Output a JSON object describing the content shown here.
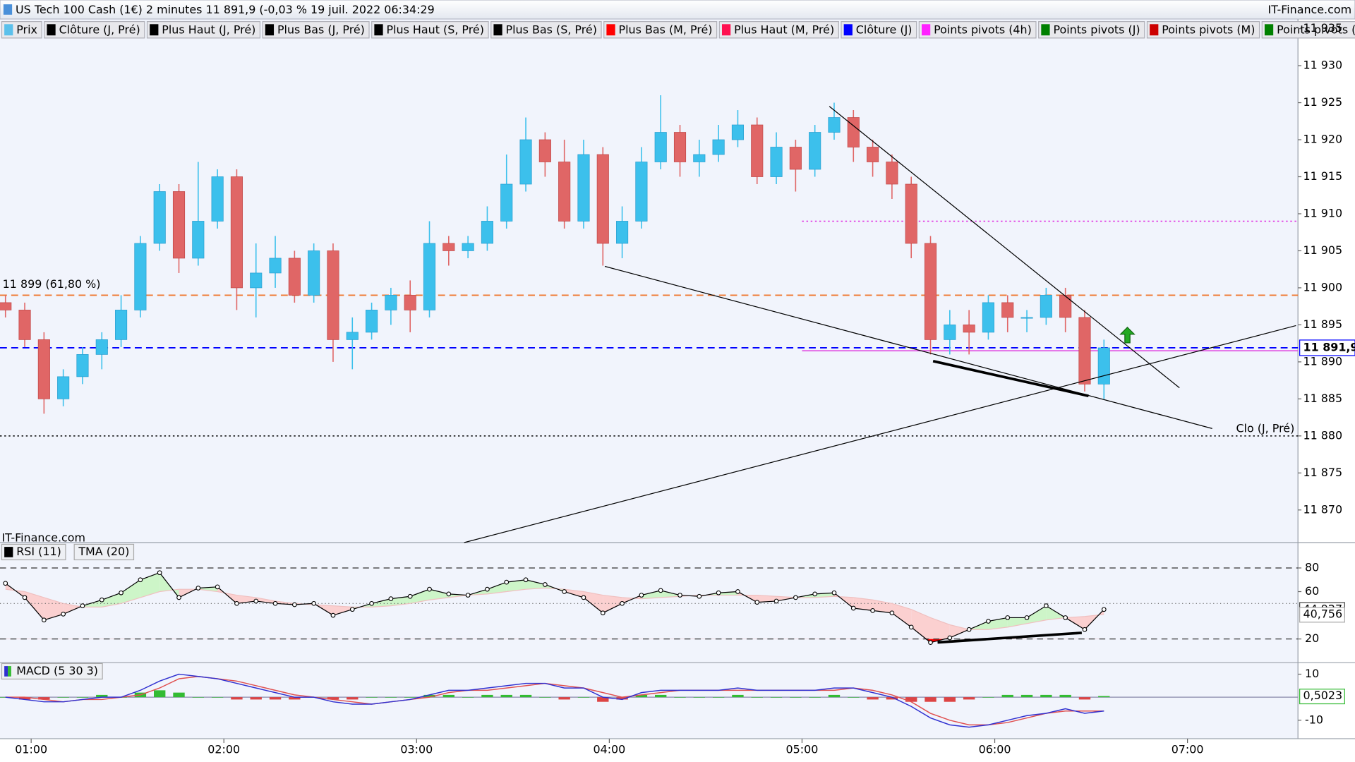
{
  "header": {
    "title": "US Tech 100 Cash (1€) 2 minutes 11 891,9 (-0,03 % 19 juil. 2022 06:34:29",
    "source": "IT-Finance.com"
  },
  "legend": [
    {
      "name": "Prix",
      "color": "#5bc0eb"
    },
    {
      "name": "Clôture (J, Pré)",
      "color": "#000000"
    },
    {
      "name": "Plus Haut (J, Pré)",
      "color": "#000000"
    },
    {
      "name": "Plus Bas (J, Pré)",
      "color": "#000000"
    },
    {
      "name": "Plus Haut (S, Pré)",
      "color": "#000000"
    },
    {
      "name": "Plus Bas (S, Pré)",
      "color": "#000000"
    },
    {
      "name": "Plus Bas (M, Pré)",
      "color": "#ff0000"
    },
    {
      "name": "Plus Haut (M, Pré)",
      "color": "#ff1050"
    },
    {
      "name": "Clôture (J)",
      "color": "#0000ff"
    },
    {
      "name": "Points pivots (4h)",
      "color": "#ff20ff"
    },
    {
      "name": "Points pivots (J)",
      "color": "#008000"
    },
    {
      "name": "Points pivots (M)",
      "color": "#cc0000"
    },
    {
      "name": "Points pivots (",
      "color": "#008000"
    }
  ],
  "chart_data": [
    {
      "type": "candlestick",
      "watermark": "IT-Finance.com",
      "up_color": "#3cc0ec",
      "down_color": "#e06666",
      "x": [
        52,
        58,
        64,
        70,
        76,
        82,
        88,
        94,
        100,
        106,
        112,
        118,
        124,
        130,
        136,
        142,
        148,
        154,
        160,
        166,
        172,
        178,
        184,
        190,
        196,
        202,
        208,
        214,
        220,
        226,
        232,
        238,
        244,
        250,
        256,
        262,
        268,
        274,
        280,
        286,
        292,
        298,
        304,
        310,
        316,
        322,
        328,
        334,
        340,
        346,
        352,
        358,
        364,
        370,
        376,
        382,
        388,
        394
      ],
      "open": [
        11898,
        11897,
        11893,
        11885,
        11888,
        11891,
        11893,
        11897,
        11906,
        11913,
        11904,
        11909,
        11915,
        11900,
        11902,
        11904,
        11899,
        11905,
        11893,
        11894,
        11897,
        11899,
        11897,
        11906,
        11905,
        11906,
        11909,
        11914,
        11920,
        11917,
        11909,
        11918,
        11906,
        11909,
        11917,
        11921,
        11917,
        11918,
        11920,
        11922,
        11915,
        11919,
        11916,
        11921,
        11923,
        11919,
        11917,
        11914,
        11906,
        11893,
        11895,
        11894,
        11898,
        11896,
        11896,
        11899,
        11896,
        11887
      ],
      "high": [
        11899,
        11898,
        11894,
        11889,
        11892,
        11894,
        11899,
        11907,
        11914,
        11914,
        11917,
        11916,
        11916,
        11906,
        11907,
        11905,
        11906,
        11906,
        11896,
        11898,
        11900,
        11901,
        11909,
        11907,
        11907,
        11911,
        11918,
        11923,
        11921,
        11920,
        11920,
        11919,
        11911,
        11919,
        11926,
        11922,
        11920,
        11922,
        11924,
        11923,
        11921,
        11920,
        11922,
        11925,
        11924,
        11920,
        11918,
        11915,
        11907,
        11897,
        11897,
        11899,
        11899,
        11897,
        11900,
        11900,
        11897,
        11893
      ],
      "low": [
        11896,
        11892,
        11883,
        11884,
        11887,
        11889,
        11892,
        11896,
        11905,
        11902,
        11903,
        11908,
        11897,
        11896,
        11900,
        11898,
        11898,
        11890,
        11889,
        11893,
        11895,
        11894,
        11896,
        11903,
        11904,
        11905,
        11908,
        11913,
        11915,
        11908,
        11908,
        11903,
        11904,
        11908,
        11916,
        11915,
        11915,
        11917,
        11919,
        11914,
        11914,
        11913,
        11915,
        11920,
        11917,
        11915,
        11912,
        11904,
        11891,
        11891,
        11891,
        11893,
        11894,
        11894,
        11895,
        11894,
        11886,
        11885
      ],
      "close": [
        11897,
        11893,
        11885,
        11888,
        11891,
        11893,
        11897,
        11906,
        11913,
        11904,
        11909,
        11915,
        11900,
        11902,
        11904,
        11899,
        11905,
        11893,
        11894,
        11897,
        11899,
        11897,
        11906,
        11905,
        11906,
        11909,
        11914,
        11920,
        11917,
        11909,
        11918,
        11906,
        11909,
        11917,
        11921,
        11917,
        11918,
        11920,
        11922,
        11915,
        11919,
        11916,
        11921,
        11923,
        11919,
        11917,
        11914,
        11906,
        11893,
        11895,
        11894,
        11898,
        11896,
        11896,
        11899,
        11896,
        11887,
        11891.9
      ],
      "xlim": [
        50.3,
        454.4
      ],
      "xticks": [
        {
          "value": 60,
          "label": "01:00"
        },
        {
          "value": 120,
          "label": "02:00"
        },
        {
          "value": 180,
          "label": "03:00"
        },
        {
          "value": 240,
          "label": "04:00"
        },
        {
          "value": 300,
          "label": "05:00"
        },
        {
          "value": 360,
          "label": "06:00"
        },
        {
          "value": 420,
          "label": "07:00"
        }
      ],
      "ylim": [
        11865.6,
        11936.3
      ],
      "yticks": [
        {
          "value": 11935,
          "label": "11 935"
        },
        {
          "value": 11930,
          "label": "11 930"
        },
        {
          "value": 11925,
          "label": "11 925"
        },
        {
          "value": 11920,
          "label": "11 920"
        },
        {
          "value": 11915,
          "label": "11 915"
        },
        {
          "value": 11910,
          "label": "11 910"
        },
        {
          "value": 11905,
          "label": "11 905"
        },
        {
          "value": 11900,
          "label": "11 900"
        },
        {
          "value": 11895,
          "label": "11 895"
        },
        {
          "value": 11890,
          "label": "11 890"
        },
        {
          "value": 11885,
          "label": "11 885"
        },
        {
          "value": 11880,
          "label": "11 880"
        },
        {
          "value": 11875,
          "label": "11 875"
        },
        {
          "value": 11870,
          "label": "11 870"
        }
      ],
      "hlines": [
        {
          "value": 11899,
          "label": "11 899 (61,80 %)",
          "color": "#f07830",
          "style": "dashed",
          "label_side": "left"
        },
        {
          "value": 11891.9,
          "label": "11 891,9",
          "color": "#0000ff",
          "style": "dashed",
          "label_side": "axis"
        },
        {
          "value": 11909,
          "color": "#e020e0",
          "style": "dotted",
          "from": 300
        },
        {
          "value": 11891.5,
          "color": "#e040e0",
          "style": "solid",
          "from": 300
        },
        {
          "value": 11880,
          "label": "Clo (J, Pré)",
          "color": "#000000",
          "style": "dotted",
          "label_side": "right"
        }
      ],
      "trendlines": [
        {
          "x": [
            238.6,
            427.7
          ],
          "y": [
            11902.9,
            11881.0
          ],
          "width": 1
        },
        {
          "x": [
            308.5,
            417.5
          ],
          "y": [
            11924.5,
            11886.5
          ],
          "width": 1
        },
        {
          "x": [
            194.8,
            453.8
          ],
          "y": [
            11865.6,
            11894.9
          ],
          "width": 1
        },
        {
          "x": [
            340.8,
            389.2
          ],
          "y": [
            11890.1,
            11885.4
          ],
          "width": 3
        }
      ],
      "signals": [
        {
          "x": 401.3,
          "y": 11893.5,
          "color": "#22aa22"
        }
      ]
    },
    {
      "type": "line",
      "title": "RSI (11)",
      "series": [
        {
          "name": "RSI (11)",
          "color": "#000000",
          "markers": true,
          "values": [
            67,
            55,
            36,
            41,
            48,
            53,
            59,
            70,
            76,
            55,
            63,
            64,
            50,
            52,
            50,
            49,
            50,
            40,
            45,
            50,
            54,
            56,
            62,
            58,
            57,
            62,
            68,
            70,
            66,
            60,
            55,
            42,
            50,
            57,
            61,
            57,
            56,
            59,
            60,
            51,
            52,
            55,
            58,
            59,
            46,
            44,
            42,
            30,
            17,
            21,
            28,
            35,
            38,
            38,
            48,
            38,
            28,
            44.927
          ],
          "last_label": "44,927"
        },
        {
          "name": "TMA (20)",
          "color": "#f0c0c0",
          "markers": false,
          "values": [
            62,
            60,
            55,
            50,
            47,
            47,
            50,
            55,
            60,
            62,
            62,
            60,
            57,
            55,
            52,
            50,
            49,
            48,
            47,
            47,
            48,
            50,
            53,
            55,
            57,
            58,
            60,
            62,
            63,
            62,
            60,
            57,
            55,
            54,
            55,
            56,
            57,
            57,
            57,
            57,
            56,
            55,
            55,
            56,
            55,
            53,
            50,
            45,
            38,
            32,
            28,
            28,
            30,
            33,
            36,
            38,
            39,
            40.756
          ],
          "last_label": "40,756"
        }
      ],
      "fill_up": "#cdf5c8",
      "fill_down": "#fbd0d0",
      "overbought_color": "#22cc22",
      "oversold_color": "#ff0000",
      "ylim": [
        0,
        100
      ],
      "yticks": [
        80,
        60,
        20
      ],
      "levels": [
        80,
        20
      ],
      "midline": 50,
      "trendlines": [
        {
          "x": [
            342.2,
            387.1
          ],
          "y": [
            17.1,
            25.2
          ],
          "width": 3
        }
      ]
    },
    {
      "type": "macd",
      "title": "MACD (5 30 3)",
      "series": [
        {
          "name": "MACD",
          "color": "#3030d0",
          "values": [
            0,
            -1,
            -2,
            -2,
            -1,
            0,
            0,
            3,
            7,
            10,
            9,
            8,
            6,
            4,
            2,
            0,
            0,
            -2,
            -3,
            -3,
            -2,
            -1,
            1,
            3,
            3,
            4,
            5,
            6,
            6,
            4,
            4,
            0,
            -1,
            2,
            3,
            3,
            3,
            3,
            4,
            3,
            3,
            3,
            3,
            4,
            4,
            2,
            0,
            -4,
            -9,
            -12,
            -13,
            -12,
            -10,
            -8,
            -7,
            -5,
            -7,
            -6
          ]
        },
        {
          "name": "Signal",
          "color": "#e05050",
          "values": [
            0,
            0,
            -1,
            -2,
            -1,
            -1,
            0,
            1,
            4,
            8,
            9,
            8,
            7,
            5,
            3,
            1,
            0,
            -1,
            -2,
            -3,
            -2,
            -1,
            0,
            2,
            3,
            3,
            4,
            5,
            6,
            5,
            4,
            2,
            0,
            1,
            2,
            3,
            3,
            3,
            3,
            3,
            3,
            3,
            3,
            3,
            4,
            3,
            1,
            -2,
            -7,
            -10,
            -12,
            -12,
            -11,
            -9,
            -7,
            -6,
            -6,
            -6
          ]
        }
      ],
      "histogram": {
        "values": [
          0,
          -1,
          -1,
          0,
          0,
          1,
          0,
          2,
          3,
          2,
          0,
          0,
          -1,
          -1,
          -1,
          -1,
          0,
          -1,
          -1,
          0,
          0,
          0,
          1,
          1,
          0,
          1,
          1,
          1,
          0,
          -1,
          0,
          -2,
          -1,
          1,
          1,
          0,
          0,
          0,
          1,
          0,
          0,
          0,
          0,
          1,
          0,
          -1,
          -1,
          -2,
          -2,
          -2,
          -1,
          0,
          1,
          1,
          1,
          1,
          -1,
          0.5023
        ],
        "up_color": "#33bb33",
        "down_color": "#dd4444",
        "last_label": "0,5023"
      },
      "ylim": [
        -18,
        15
      ],
      "yticks": [
        10,
        -10
      ]
    }
  ]
}
